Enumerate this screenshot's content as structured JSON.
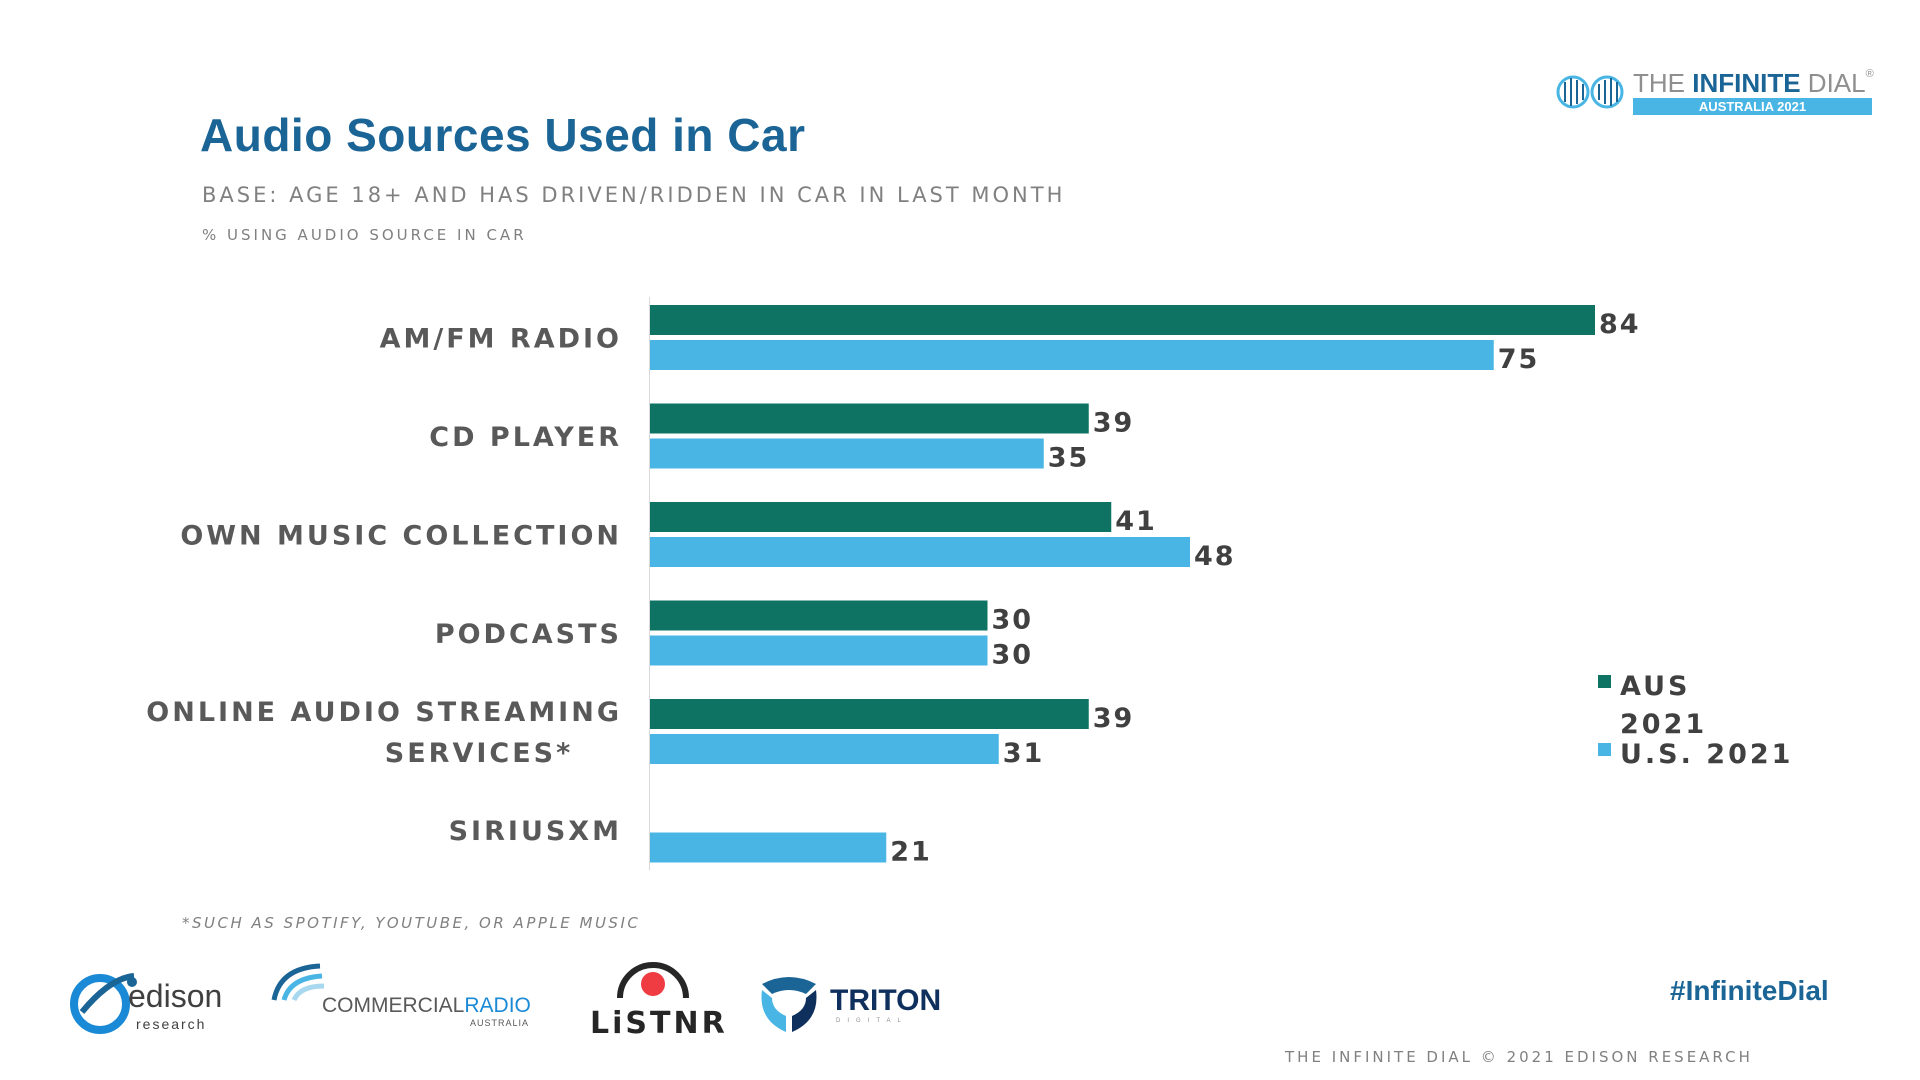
{
  "title": "Audio Sources Used in Car",
  "subtitle": "BASE: AGE 18+ AND HAS DRIVEN/RIDDEN IN CAR IN LAST MONTH",
  "caption": "% USING AUDIO SOURCE IN CAR",
  "footnote": "*SUCH AS SPOTIFY, YOUTUBE, OR APPLE MUSIC",
  "hashtag": "#InfiniteDial",
  "copyright": "THE INFINITE DIAL  © 2021 EDISON RESEARCH",
  "header_logo": {
    "the": "THE ",
    "infinite": "INFINITE",
    "dial": " DIAL",
    "reg": "®",
    "edition": "AUSTRALIA 2021"
  },
  "sponsors": {
    "edison": {
      "name": "edison",
      "sub": "research"
    },
    "commercial_radio": {
      "part1": "COMMERCIAL",
      "part2": "RADIO",
      "sub": "AUSTRALIA"
    },
    "listnr": {
      "name": "LiSTNR"
    },
    "triton": {
      "name": "TRITON",
      "sub": "DIGITAL"
    }
  },
  "colors": {
    "aus": "#0e7363",
    "us": "#48b5e4",
    "title": "#1b6496"
  },
  "chart_data": {
    "type": "bar",
    "orientation": "horizontal",
    "categories": [
      [
        "AM/FM RADIO"
      ],
      [
        "CD PLAYER"
      ],
      [
        "OWN MUSIC COLLECTION"
      ],
      [
        "PODCASTS"
      ],
      [
        "ONLINE AUDIO STREAMING",
        "SERVICES*"
      ],
      [
        "SIRIUSXM"
      ]
    ],
    "series": [
      {
        "name": "AUS 2021",
        "values": [
          84,
          39,
          41,
          30,
          39,
          null
        ]
      },
      {
        "name": "U.S. 2021",
        "values": [
          75,
          35,
          48,
          30,
          31,
          21
        ]
      }
    ],
    "xlim": [
      0,
      100
    ],
    "legend": {
      "position": "right",
      "items": [
        [
          "AUS",
          "2021"
        ],
        [
          "U.S. 2021"
        ]
      ]
    }
  }
}
